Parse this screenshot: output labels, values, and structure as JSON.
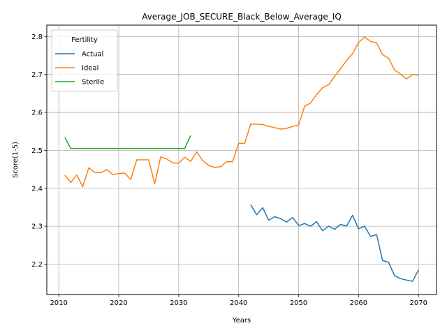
{
  "chart_data": {
    "type": "line",
    "title": "Average_JOB_SECURE_Black_Below_Average_IQ",
    "xlabel": "Years",
    "ylabel": "Score(1-5)",
    "xlim": [
      2008,
      2073
    ],
    "ylim": [
      2.12,
      2.83
    ],
    "xticks": [
      2010,
      2020,
      2030,
      2040,
      2050,
      2060,
      2070
    ],
    "yticks": [
      2.2,
      2.3,
      2.4,
      2.5,
      2.6,
      2.7,
      2.8
    ],
    "ytick_labels": [
      "2.2",
      "2.3",
      "2.4",
      "2.5",
      "2.6",
      "2.7",
      "2.8"
    ],
    "grid": true,
    "legend": {
      "title": "Fertility",
      "position": "top-left"
    },
    "series": [
      {
        "name": "Actual",
        "color": "#1f77b4",
        "x": [
          2042,
          2043,
          2044,
          2045,
          2046,
          2047,
          2048,
          2049,
          2050,
          2051,
          2052,
          2053,
          2054,
          2055,
          2056,
          2057,
          2058,
          2059,
          2060,
          2061,
          2062,
          2063,
          2064,
          2065,
          2066,
          2067,
          2068,
          2069,
          2070
        ],
        "y": [
          2.357,
          2.33,
          2.349,
          2.316,
          2.325,
          2.32,
          2.311,
          2.323,
          2.302,
          2.307,
          2.3,
          2.312,
          2.288,
          2.3,
          2.292,
          2.305,
          2.3,
          2.329,
          2.293,
          2.3,
          2.273,
          2.278,
          2.21,
          2.205,
          2.17,
          2.162,
          2.158,
          2.155,
          2.185
        ]
      },
      {
        "name": "Ideal",
        "color": "#ff7f0e",
        "x": [
          2011,
          2012,
          2013,
          2014,
          2015,
          2016,
          2017,
          2018,
          2019,
          2020,
          2021,
          2022,
          2023,
          2024,
          2025,
          2026,
          2027,
          2028,
          2029,
          2030,
          2031,
          2032,
          2033,
          2034,
          2035,
          2036,
          2037,
          2038,
          2039,
          2040,
          2041,
          2042,
          2043,
          2044,
          2045,
          2046,
          2047,
          2048,
          2049,
          2050,
          2051,
          2052,
          2053,
          2054,
          2055,
          2056,
          2057,
          2058,
          2059,
          2060,
          2061,
          2062,
          2063,
          2064,
          2065,
          2066,
          2067,
          2068,
          2069,
          2070
        ],
        "y": [
          2.435,
          2.415,
          2.435,
          2.404,
          2.454,
          2.442,
          2.441,
          2.449,
          2.436,
          2.439,
          2.44,
          2.423,
          2.475,
          2.475,
          2.475,
          2.412,
          2.483,
          2.477,
          2.467,
          2.466,
          2.482,
          2.471,
          2.496,
          2.473,
          2.46,
          2.455,
          2.457,
          2.47,
          2.47,
          2.519,
          2.518,
          2.569,
          2.569,
          2.568,
          2.563,
          2.56,
          2.556,
          2.558,
          2.563,
          2.567,
          2.616,
          2.625,
          2.647,
          2.665,
          2.673,
          2.695,
          2.715,
          2.737,
          2.755,
          2.784,
          2.799,
          2.787,
          2.783,
          2.752,
          2.743,
          2.712,
          2.701,
          2.688,
          2.7,
          2.698
        ]
      },
      {
        "name": "Sterile",
        "color": "#2ca02c",
        "x": [
          2011,
          2012,
          2013,
          2014,
          2015,
          2016,
          2017,
          2018,
          2019,
          2020,
          2021,
          2022,
          2023,
          2024,
          2025,
          2026,
          2027,
          2028,
          2029,
          2030,
          2031,
          2032
        ],
        "y": [
          2.534,
          2.505,
          2.505,
          2.505,
          2.505,
          2.505,
          2.505,
          2.505,
          2.505,
          2.505,
          2.505,
          2.505,
          2.505,
          2.505,
          2.505,
          2.505,
          2.505,
          2.505,
          2.505,
          2.505,
          2.505,
          2.539
        ]
      }
    ]
  }
}
